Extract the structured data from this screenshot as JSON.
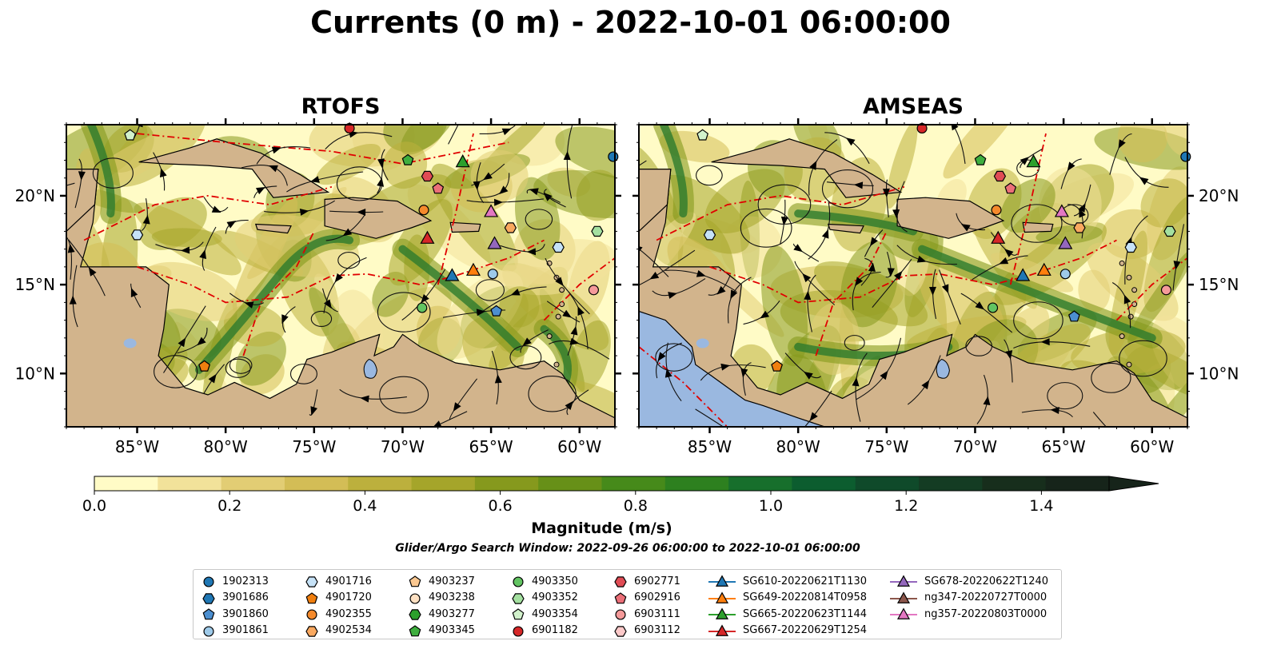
{
  "title": "Currents (0 m) - 2022-10-01 06:00:00",
  "colors": {
    "land": "#d2b48c",
    "water_low": "#fffbc6",
    "current_ridge": "#2d7a2d",
    "eez_line": "#e00000",
    "lake": "#9ab8e0",
    "pacific": "#9ab8e0"
  },
  "chart_data": [
    {
      "type": "heatmap",
      "panel": "RTOFS",
      "title": "RTOFS",
      "xlim": [
        -89,
        -58
      ],
      "ylim": [
        7,
        24
      ],
      "xticks": [
        -85,
        -80,
        -75,
        -70,
        -65,
        -60
      ],
      "xtick_labels": [
        "85°W",
        "80°W",
        "75°W",
        "70°W",
        "65°W",
        "60°W"
      ],
      "yticks": [
        10,
        15,
        20
      ],
      "ytick_labels": [
        "10°N",
        "15°N",
        "20°N"
      ],
      "ytick_side": "left",
      "observations": [
        {
          "id": "1902313",
          "lon": -58.1,
          "lat": 22.2
        },
        {
          "id": "3901860",
          "lon": -64.7,
          "lat": 13.5
        },
        {
          "id": "3901861",
          "lon": -64.9,
          "lat": 15.6
        },
        {
          "id": "4901716",
          "lon": -85.0,
          "lat": 17.8
        },
        {
          "id": "4901716",
          "lon": -61.2,
          "lat": 17.1
        },
        {
          "id": "4902355",
          "lon": -68.8,
          "lat": 19.2
        },
        {
          "id": "4902534",
          "lon": -63.9,
          "lat": 18.2
        },
        {
          "id": "4901720",
          "lon": -81.2,
          "lat": 10.4
        },
        {
          "id": "4903350",
          "lon": -68.9,
          "lat": 13.7
        },
        {
          "id": "4903352",
          "lon": -59.0,
          "lat": 18.0
        },
        {
          "id": "4903354",
          "lon": -85.4,
          "lat": 23.4
        },
        {
          "id": "4903345",
          "lon": -69.7,
          "lat": 22.0
        },
        {
          "id": "6902771",
          "lon": -68.6,
          "lat": 21.1
        },
        {
          "id": "6902916",
          "lon": -68.0,
          "lat": 20.4
        },
        {
          "id": "6903111",
          "lon": -59.2,
          "lat": 14.7
        },
        {
          "id": "6901182",
          "lon": -73.0,
          "lat": 23.8
        }
      ],
      "gliders": [
        {
          "id": "SG610-20220621T1130",
          "lon": -67.2,
          "lat": 15.5
        },
        {
          "id": "SG649-20220814T0958",
          "lon": -66.0,
          "lat": 15.8
        },
        {
          "id": "SG665-20220623T1144",
          "lon": -66.6,
          "lat": 21.9
        },
        {
          "id": "SG667-20220629T1254",
          "lon": -68.6,
          "lat": 17.6
        },
        {
          "id": "SG678-20220622T1240",
          "lon": -64.8,
          "lat": 17.3
        },
        {
          "id": "ng357-20220803T0000",
          "lon": -65.0,
          "lat": 19.1
        }
      ]
    },
    {
      "type": "heatmap",
      "panel": "AMSEAS",
      "title": "AMSEAS",
      "xlim": [
        -89,
        -58
      ],
      "ylim": [
        7,
        24
      ],
      "xticks": [
        -85,
        -80,
        -75,
        -70,
        -65,
        -60
      ],
      "xtick_labels": [
        "85°W",
        "80°W",
        "75°W",
        "70°W",
        "65°W",
        "60°W"
      ],
      "yticks": [
        10,
        15,
        20
      ],
      "ytick_labels": [
        "10°N",
        "15°N",
        "20°N"
      ],
      "ytick_side": "right",
      "observations": [
        {
          "id": "1902313",
          "lon": -58.1,
          "lat": 22.2
        },
        {
          "id": "3901860",
          "lon": -64.4,
          "lat": 13.2
        },
        {
          "id": "3901861",
          "lon": -64.9,
          "lat": 15.6
        },
        {
          "id": "4901716",
          "lon": -85.0,
          "lat": 17.8
        },
        {
          "id": "4901716",
          "lon": -61.2,
          "lat": 17.1
        },
        {
          "id": "4902355",
          "lon": -68.8,
          "lat": 19.2
        },
        {
          "id": "4902534",
          "lon": -64.1,
          "lat": 18.2
        },
        {
          "id": "4901720",
          "lon": -81.2,
          "lat": 10.4
        },
        {
          "id": "4903350",
          "lon": -69.0,
          "lat": 13.7
        },
        {
          "id": "4903352",
          "lon": -59.0,
          "lat": 18.0
        },
        {
          "id": "4903354",
          "lon": -85.4,
          "lat": 23.4
        },
        {
          "id": "4903345",
          "lon": -69.7,
          "lat": 22.0
        },
        {
          "id": "6902771",
          "lon": -68.6,
          "lat": 21.1
        },
        {
          "id": "6902916",
          "lon": -68.0,
          "lat": 20.4
        },
        {
          "id": "6903111",
          "lon": -59.2,
          "lat": 14.7
        },
        {
          "id": "6901182",
          "lon": -73.0,
          "lat": 23.8
        }
      ],
      "gliders": [
        {
          "id": "SG610-20220621T1130",
          "lon": -67.3,
          "lat": 15.5
        },
        {
          "id": "SG649-20220814T0958",
          "lon": -66.1,
          "lat": 15.8
        },
        {
          "id": "SG665-20220623T1144",
          "lon": -66.7,
          "lat": 21.9
        },
        {
          "id": "SG667-20220629T1254",
          "lon": -68.7,
          "lat": 17.6
        },
        {
          "id": "SG678-20220622T1240",
          "lon": -64.9,
          "lat": 17.3
        },
        {
          "id": "ng357-20220803T0000",
          "lon": -65.1,
          "lat": 19.1
        }
      ]
    }
  ],
  "colorbar": {
    "min": 0.0,
    "max": 1.5,
    "step": 0.1,
    "extend": "max",
    "tick_values": [
      0.0,
      0.2,
      0.4,
      0.6,
      0.8,
      1.0,
      1.2,
      1.4
    ],
    "tick_labels": [
      "0.0",
      "0.2",
      "0.4",
      "0.6",
      "0.8",
      "1.0",
      "1.2",
      "1.4"
    ],
    "colors": [
      "#fffbc6",
      "#f2e29a",
      "#e2cd74",
      "#d3bd56",
      "#bcb03d",
      "#a5a52a",
      "#86991d",
      "#679018",
      "#468a1a",
      "#2d801f",
      "#176f2c",
      "#0c5d2f",
      "#0f4a2a",
      "#143c23",
      "#172e1c",
      "#16241a"
    ],
    "label": "Magnitude (m/s)"
  },
  "search_window": "Glider/Argo Search Window: 2022-09-26 06:00:00 to 2022-10-01 06:00:00",
  "legend": [
    {
      "label": "1902313",
      "marker": "circle",
      "color": "#1f77b4"
    },
    {
      "label": "3901686",
      "marker": "hexagon",
      "color": "#1f77b4"
    },
    {
      "label": "3901860",
      "marker": "pentagon",
      "color": "#4c8fd0"
    },
    {
      "label": "3901861",
      "marker": "circle",
      "color": "#9ecae9"
    },
    {
      "label": "4901716",
      "marker": "hexagon",
      "color": "#c6e2f7"
    },
    {
      "label": "4901720",
      "marker": "pentagon",
      "color": "#f07f0f"
    },
    {
      "label": "4902355",
      "marker": "circle",
      "color": "#f58a2c"
    },
    {
      "label": "4902534",
      "marker": "hexagon",
      "color": "#f9a85f"
    },
    {
      "label": "4903237",
      "marker": "pentagon",
      "color": "#fbc891"
    },
    {
      "label": "4903238",
      "marker": "circle",
      "color": "#fde0c2"
    },
    {
      "label": "4903277",
      "marker": "hexagon",
      "color": "#2ca02c"
    },
    {
      "label": "4903345",
      "marker": "pentagon",
      "color": "#3eae3e"
    },
    {
      "label": "4903350",
      "marker": "circle",
      "color": "#62c462"
    },
    {
      "label": "4903352",
      "marker": "hexagon",
      "color": "#a4e0a0"
    },
    {
      "label": "4903354",
      "marker": "pentagon",
      "color": "#d2f2cc"
    },
    {
      "label": "6901182",
      "marker": "circle",
      "color": "#d62728"
    },
    {
      "label": "6902771",
      "marker": "hexagon",
      "color": "#e04c55"
    },
    {
      "label": "6902916",
      "marker": "pentagon",
      "color": "#eb6f78"
    },
    {
      "label": "6903111",
      "marker": "circle",
      "color": "#f59a9a"
    },
    {
      "label": "6903112",
      "marker": "hexagon",
      "color": "#fcc9c9"
    },
    {
      "label": "SG610-20220621T1130",
      "marker": "triangle",
      "color": "#1f77b4"
    },
    {
      "label": "SG649-20220814T0958",
      "marker": "triangle",
      "color": "#ff7f0e"
    },
    {
      "label": "SG665-20220623T1144",
      "marker": "triangle",
      "color": "#2ca02c"
    },
    {
      "label": "SG667-20220629T1254",
      "marker": "triangle",
      "color": "#d62728"
    },
    {
      "label": "SG678-20220622T1240",
      "marker": "triangle",
      "color": "#9467bd"
    },
    {
      "label": "ng347-20220727T0000",
      "marker": "triangle",
      "color": "#8c564b"
    },
    {
      "label": "ng357-20220803T0000",
      "marker": "triangle",
      "color": "#e377c2"
    }
  ]
}
